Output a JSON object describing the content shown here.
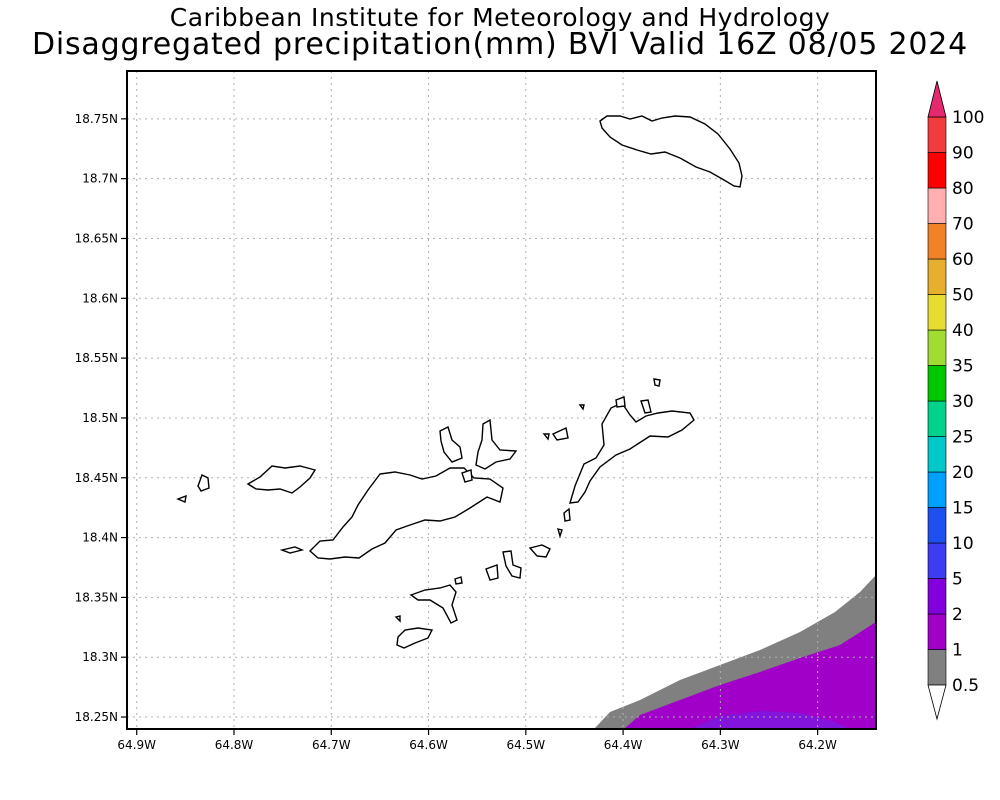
{
  "title": {
    "line1": "Caribbean Institute for Meteorology and Hydrology",
    "line2": "Disaggregated precipitation(mm) BVI Valid 16Z 08/05 2024"
  },
  "map": {
    "lon_range": [
      -64.91,
      -64.14
    ],
    "lat_range": [
      18.24,
      18.79
    ],
    "lon_ticks": [
      {
        "value": -64.9,
        "label": "64.9W"
      },
      {
        "value": -64.8,
        "label": "64.8W"
      },
      {
        "value": -64.7,
        "label": "64.7W"
      },
      {
        "value": -64.6,
        "label": "64.6W"
      },
      {
        "value": -64.5,
        "label": "64.5W"
      },
      {
        "value": -64.4,
        "label": "64.4W"
      },
      {
        "value": -64.3,
        "label": "64.3W"
      },
      {
        "value": -64.2,
        "label": "64.2W"
      }
    ],
    "lat_ticks": [
      {
        "value": 18.75,
        "label": "18.75N"
      },
      {
        "value": 18.7,
        "label": "18.7N"
      },
      {
        "value": 18.65,
        "label": "18.65N"
      },
      {
        "value": 18.6,
        "label": "18.6N"
      },
      {
        "value": 18.55,
        "label": "18.55N"
      },
      {
        "value": 18.5,
        "label": "18.5N"
      },
      {
        "value": 18.45,
        "label": "18.45N"
      },
      {
        "value": 18.4,
        "label": "18.4N"
      },
      {
        "value": 18.35,
        "label": "18.35N"
      },
      {
        "value": 18.3,
        "label": "18.3N"
      },
      {
        "value": 18.25,
        "label": "18.25N"
      }
    ],
    "grid": true,
    "precip_areas": [
      {
        "level": "0.5-1 mm",
        "color": "#808080"
      },
      {
        "level": "1-2 mm",
        "color": "#a000c8"
      },
      {
        "level": "2-5 mm",
        "color": "#8214dc"
      }
    ]
  },
  "colorbar": {
    "levels": [
      {
        "label": "0.5",
        "color": "#ffffff"
      },
      {
        "label": "1",
        "color": "#808080"
      },
      {
        "label": "2",
        "color": "#a000c8"
      },
      {
        "label": "5",
        "color": "#8200dc"
      },
      {
        "label": "10",
        "color": "#3c3cf0"
      },
      {
        "label": "15",
        "color": "#1e50f0"
      },
      {
        "label": "20",
        "color": "#00a0ff"
      },
      {
        "label": "25",
        "color": "#00c8c8"
      },
      {
        "label": "30",
        "color": "#00d28c"
      },
      {
        "label": "35",
        "color": "#00c800"
      },
      {
        "label": "40",
        "color": "#a0dc32"
      },
      {
        "label": "50",
        "color": "#e6dc32"
      },
      {
        "label": "60",
        "color": "#e6af2d"
      },
      {
        "label": "70",
        "color": "#f08228"
      },
      {
        "label": "80",
        "color": "#ffafaf"
      },
      {
        "label": "90",
        "color": "#fa0000"
      },
      {
        "label": "100",
        "color": "#f03c3c"
      }
    ],
    "top_color": "#e6286e",
    "bottom_color": "#ffffff"
  }
}
